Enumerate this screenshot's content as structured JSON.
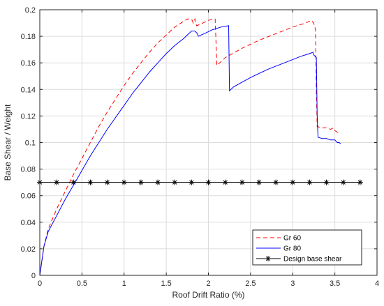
{
  "chart_data": {
    "type": "line",
    "xlabel": "Roof Drift Ratio (%)",
    "ylabel": "Base Shear / Weight",
    "xlim": [
      0,
      4
    ],
    "ylim": [
      0,
      0.2
    ],
    "xticks": [
      "0",
      "0.5",
      "1",
      "1.5",
      "2",
      "2.5",
      "3",
      "3.5",
      "4"
    ],
    "yticks": [
      "0",
      "0.02",
      "0.04",
      "0.06",
      "0.08",
      "0.1",
      "0.12",
      "0.14",
      "0.16",
      "0.18",
      "0.2"
    ],
    "grid": true,
    "legend_position": "bottom-right",
    "series": [
      {
        "name": "Gr 60",
        "color": "#ff0000",
        "style": "dashed",
        "points": [
          [
            0,
            0
          ],
          [
            0.05,
            0.022
          ],
          [
            0.1,
            0.035
          ],
          [
            0.2,
            0.05
          ],
          [
            0.3,
            0.063
          ],
          [
            0.4,
            0.076
          ],
          [
            0.5,
            0.088
          ],
          [
            0.6,
            0.1
          ],
          [
            0.7,
            0.112
          ],
          [
            0.8,
            0.123
          ],
          [
            0.9,
            0.133
          ],
          [
            1.0,
            0.143
          ],
          [
            1.1,
            0.152
          ],
          [
            1.2,
            0.16
          ],
          [
            1.3,
            0.168
          ],
          [
            1.4,
            0.175
          ],
          [
            1.5,
            0.181
          ],
          [
            1.6,
            0.187
          ],
          [
            1.7,
            0.191
          ],
          [
            1.75,
            0.193
          ],
          [
            1.8,
            0.193
          ],
          [
            1.82,
            0.19
          ],
          [
            1.84,
            0.193
          ],
          [
            1.86,
            0.188
          ],
          [
            1.9,
            0.189
          ],
          [
            2.0,
            0.192
          ],
          [
            2.06,
            0.193
          ],
          [
            2.08,
            0.193
          ],
          [
            2.1,
            0.158
          ],
          [
            2.2,
            0.164
          ],
          [
            2.4,
            0.171
          ],
          [
            2.6,
            0.177
          ],
          [
            2.8,
            0.182
          ],
          [
            3.0,
            0.187
          ],
          [
            3.15,
            0.19
          ],
          [
            3.22,
            0.192
          ],
          [
            3.25,
            0.19
          ],
          [
            3.27,
            0.185
          ],
          [
            3.28,
            0.14
          ],
          [
            3.29,
            0.112
          ],
          [
            3.35,
            0.111
          ],
          [
            3.4,
            0.111
          ],
          [
            3.45,
            0.11
          ],
          [
            3.48,
            0.111
          ],
          [
            3.5,
            0.109
          ],
          [
            3.55,
            0.107
          ]
        ]
      },
      {
        "name": "Gr 80",
        "color": "#0000ff",
        "style": "solid",
        "points": [
          [
            0,
            0
          ],
          [
            0.05,
            0.022
          ],
          [
            0.1,
            0.033
          ],
          [
            0.2,
            0.045
          ],
          [
            0.3,
            0.057
          ],
          [
            0.4,
            0.068
          ],
          [
            0.5,
            0.079
          ],
          [
            0.6,
            0.09
          ],
          [
            0.7,
            0.1
          ],
          [
            0.8,
            0.11
          ],
          [
            0.9,
            0.119
          ],
          [
            1.0,
            0.128
          ],
          [
            1.1,
            0.137
          ],
          [
            1.2,
            0.145
          ],
          [
            1.3,
            0.153
          ],
          [
            1.4,
            0.16
          ],
          [
            1.5,
            0.167
          ],
          [
            1.6,
            0.173
          ],
          [
            1.7,
            0.178
          ],
          [
            1.75,
            0.181
          ],
          [
            1.8,
            0.184
          ],
          [
            1.84,
            0.184
          ],
          [
            1.87,
            0.182
          ],
          [
            1.88,
            0.18
          ],
          [
            1.95,
            0.182
          ],
          [
            2.05,
            0.185
          ],
          [
            2.15,
            0.187
          ],
          [
            2.24,
            0.188
          ],
          [
            2.25,
            0.139
          ],
          [
            2.3,
            0.142
          ],
          [
            2.5,
            0.149
          ],
          [
            2.7,
            0.155
          ],
          [
            2.9,
            0.16
          ],
          [
            3.1,
            0.165
          ],
          [
            3.2,
            0.167
          ],
          [
            3.24,
            0.168
          ],
          [
            3.25,
            0.166
          ],
          [
            3.28,
            0.164
          ],
          [
            3.29,
            0.12
          ],
          [
            3.3,
            0.104
          ],
          [
            3.35,
            0.103
          ],
          [
            3.4,
            0.103
          ],
          [
            3.45,
            0.102
          ],
          [
            3.5,
            0.102
          ],
          [
            3.53,
            0.1
          ],
          [
            3.55,
            0.1
          ],
          [
            3.57,
            0.099
          ]
        ]
      },
      {
        "name": "Design base shear",
        "color": "#000000",
        "style": "solid-asterisk",
        "points": [
          [
            0,
            0.07
          ],
          [
            0.2,
            0.07
          ],
          [
            0.4,
            0.07
          ],
          [
            0.6,
            0.07
          ],
          [
            0.8,
            0.07
          ],
          [
            1.0,
            0.07
          ],
          [
            1.2,
            0.07
          ],
          [
            1.4,
            0.07
          ],
          [
            1.6,
            0.07
          ],
          [
            1.8,
            0.07
          ],
          [
            2.0,
            0.07
          ],
          [
            2.2,
            0.07
          ],
          [
            2.4,
            0.07
          ],
          [
            2.6,
            0.07
          ],
          [
            2.8,
            0.07
          ],
          [
            3.0,
            0.07
          ],
          [
            3.2,
            0.07
          ],
          [
            3.4,
            0.07
          ],
          [
            3.6,
            0.07
          ],
          [
            3.8,
            0.07
          ]
        ]
      }
    ]
  }
}
